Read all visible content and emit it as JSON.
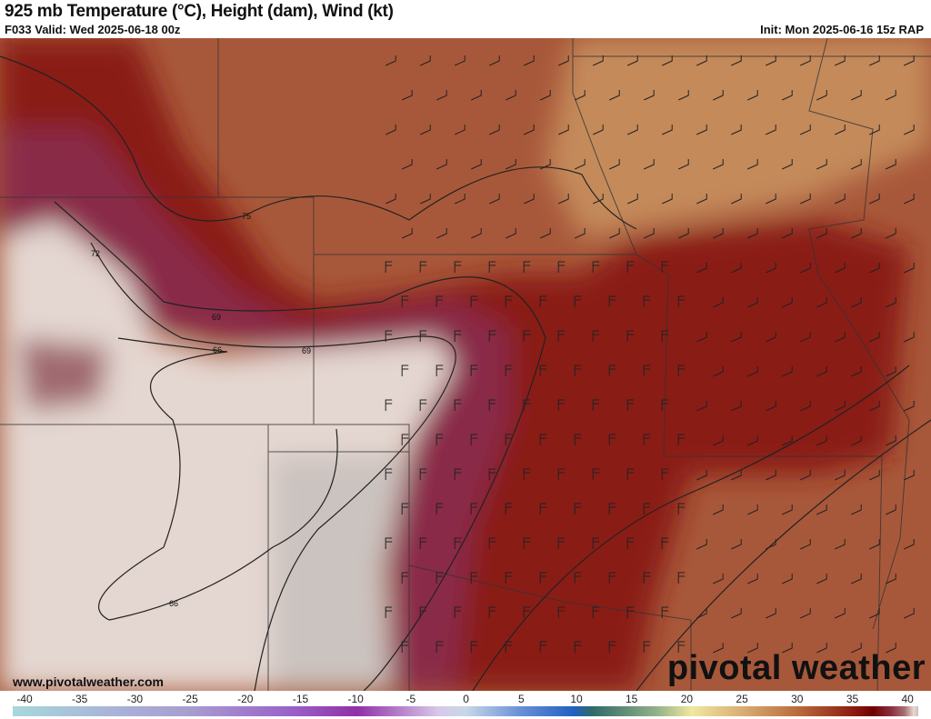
{
  "header": {
    "title": "925 mb Temperature (°C), Height (dam), Wind (kt)",
    "valid": "F033 Valid: Wed 2025-06-18 00z",
    "init": "Init: Mon 2025-06-16 15z RAP"
  },
  "map": {
    "contour_labels": [
      "75",
      "72",
      "69",
      "69",
      "66",
      "66"
    ],
    "colors": {
      "warm": "#a8583a",
      "hot": "#8a1414",
      "tan": "#c48a5a",
      "magenta": "#8a2a4a",
      "cool": "#e8dcd6",
      "gray": "#c8c0bc"
    }
  },
  "branding": {
    "site": "www.pivotalweather.com",
    "logo": "pivotal weather"
  },
  "colorbar": {
    "ticks": [
      "-40",
      "-35",
      "-30",
      "-25",
      "-20",
      "-15",
      "-10",
      "-5",
      "0",
      "5",
      "10",
      "15",
      "20",
      "25",
      "30",
      "35",
      "40"
    ],
    "units": "°C"
  }
}
